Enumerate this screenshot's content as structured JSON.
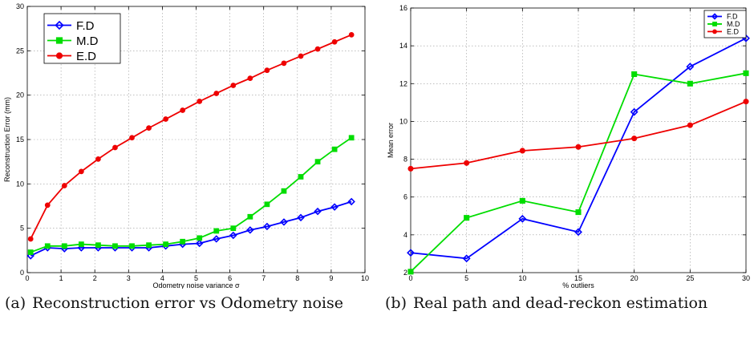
{
  "chart_data": [
    {
      "type": "line",
      "xlabel": "Odometry noise variance σ",
      "ylabel": "Reconstruction Error (mm)",
      "xlim": [
        0,
        10
      ],
      "ylim": [
        0,
        30
      ],
      "xticks": [
        0,
        1,
        2,
        3,
        4,
        5,
        6,
        7,
        8,
        9,
        10
      ],
      "yticks": [
        0,
        5,
        10,
        15,
        20,
        25,
        30
      ],
      "grid": true,
      "legend": "top-left",
      "x": [
        0.1,
        0.6,
        1.1,
        1.6,
        2.1,
        2.6,
        3.1,
        3.6,
        4.1,
        4.6,
        5.1,
        5.6,
        6.1,
        6.6,
        7.1,
        7.6,
        8.1,
        8.6,
        9.1,
        9.6
      ],
      "series": [
        {
          "name": "F.D",
          "color": "#0000ff",
          "marker": "diamond",
          "values": [
            1.9,
            2.8,
            2.7,
            2.8,
            2.8,
            2.8,
            2.8,
            2.8,
            3.0,
            3.2,
            3.3,
            3.8,
            4.2,
            4.8,
            5.2,
            5.7,
            6.2,
            6.9,
            7.4,
            8.0
          ]
        },
        {
          "name": "M.D",
          "color": "#00dd00",
          "marker": "square",
          "values": [
            2.3,
            3.0,
            3.0,
            3.2,
            3.1,
            3.0,
            3.0,
            3.1,
            3.2,
            3.5,
            3.9,
            4.7,
            5.0,
            6.3,
            7.7,
            9.2,
            10.8,
            12.5,
            13.9,
            15.2
          ]
        },
        {
          "name": "E.D",
          "color": "#ee0000",
          "marker": "circle",
          "values": [
            3.8,
            7.6,
            9.8,
            11.4,
            12.8,
            14.1,
            15.2,
            16.3,
            17.3,
            18.3,
            19.3,
            20.2,
            21.1,
            21.9,
            22.8,
            23.6,
            24.4,
            25.2,
            26.0,
            26.8
          ]
        }
      ]
    },
    {
      "type": "line",
      "xlabel": "% outliers",
      "ylabel": "Mean error",
      "xlim": [
        0,
        30
      ],
      "ylim": [
        2,
        16
      ],
      "xticks": [
        0,
        5,
        10,
        15,
        20,
        25,
        30
      ],
      "yticks": [
        2,
        4,
        6,
        8,
        10,
        12,
        14,
        16
      ],
      "grid": true,
      "legend": "top-right",
      "x": [
        0,
        5,
        10,
        15,
        20,
        25,
        30
      ],
      "series": [
        {
          "name": "F.D",
          "color": "#0000ff",
          "marker": "diamond",
          "values": [
            3.05,
            2.75,
            4.85,
            4.15,
            10.5,
            12.9,
            14.4
          ]
        },
        {
          "name": "M.D",
          "color": "#00dd00",
          "marker": "square",
          "values": [
            2.05,
            4.9,
            5.8,
            5.2,
            12.5,
            12.0,
            12.55
          ]
        },
        {
          "name": "E.D",
          "color": "#ee0000",
          "marker": "circle",
          "values": [
            7.5,
            7.8,
            8.45,
            8.65,
            9.1,
            9.8,
            11.05
          ]
        }
      ]
    }
  ],
  "captions": [
    {
      "label": "(a)",
      "text": "Reconstruction error vs Odometry noise"
    },
    {
      "label": "(b)",
      "text": "Real path and dead-reckon estimation"
    }
  ]
}
